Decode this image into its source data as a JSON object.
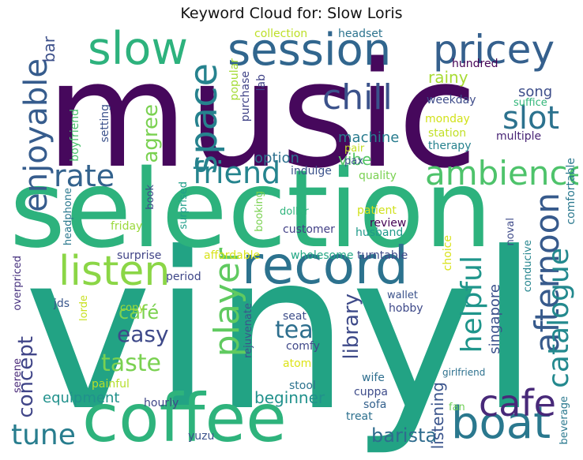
{
  "title": "Keyword Cloud for: Slow Loris",
  "palette": "viridis",
  "words": [
    {
      "text": "music",
      "color": "#46085c"
    },
    {
      "text": "vinyl",
      "color": "#22a384"
    },
    {
      "text": "selection",
      "color": "#2db27d"
    },
    {
      "text": "coffee",
      "color": "#2eb37c"
    },
    {
      "text": "record",
      "color": "#2c728e"
    },
    {
      "text": "session",
      "color": "#31668e"
    },
    {
      "text": "slow",
      "color": "#2db27d"
    },
    {
      "text": "pricey",
      "color": "#35608d"
    },
    {
      "text": "boat",
      "color": "#2a788e"
    },
    {
      "text": "listen",
      "color": "#8bd646"
    },
    {
      "text": "ambience",
      "color": "#4ec36b"
    },
    {
      "text": "space",
      "color": "#26828e"
    },
    {
      "text": "chill",
      "color": "#3b528b"
    },
    {
      "text": "slot",
      "color": "#2c728e"
    },
    {
      "text": "friend",
      "color": "#25848e"
    },
    {
      "text": "rate",
      "color": "#33628d"
    },
    {
      "text": "cafe",
      "color": "#482979"
    },
    {
      "text": "player",
      "color": "#60ca60"
    },
    {
      "text": "enjoyable",
      "color": "#365c8d"
    },
    {
      "text": "afternoon",
      "color": "#375a8c"
    },
    {
      "text": "catalogue",
      "color": "#23898e"
    },
    {
      "text": "helpful",
      "color": "#1f958b"
    },
    {
      "text": "tune",
      "color": "#287d8e"
    },
    {
      "text": "taste",
      "color": "#7ad151"
    },
    {
      "text": "tea",
      "color": "#2e6f8e"
    },
    {
      "text": "easy",
      "color": "#3e4989"
    },
    {
      "text": "café",
      "color": "#7cd250"
    },
    {
      "text": "concept",
      "color": "#404588"
    },
    {
      "text": "library",
      "color": "#3e4a89"
    },
    {
      "text": "agree",
      "color": "#7ad151"
    },
    {
      "text": "equipment",
      "color": "#21918c"
    },
    {
      "text": "barista",
      "color": "#2f6c8e"
    },
    {
      "text": "singapore",
      "color": "#3b518b"
    },
    {
      "text": "vibe",
      "color": "#56c667"
    },
    {
      "text": "option",
      "color": "#2d708e"
    },
    {
      "text": "machine",
      "color": "#287c8e"
    },
    {
      "text": "song",
      "color": "#3d4e8a"
    },
    {
      "text": "rainy",
      "color": "#a8db34"
    },
    {
      "text": "bar",
      "color": "#3c4f8a"
    },
    {
      "text": "beginner",
      "color": "#21918c"
    },
    {
      "text": "listening",
      "color": "#3a548c"
    },
    {
      "text": "collection",
      "color": "#bddf26"
    },
    {
      "text": "headset",
      "color": "#2c738e"
    },
    {
      "text": "popular",
      "color": "#a5db36"
    },
    {
      "text": "purchase",
      "color": "#404387"
    },
    {
      "text": "lab",
      "color": "#404387"
    },
    {
      "text": "hundred",
      "color": "#440154"
    },
    {
      "text": "weekday",
      "color": "#3e4c8a"
    },
    {
      "text": "suffice",
      "color": "#32b67a"
    },
    {
      "text": "monday",
      "color": "#d2e21b"
    },
    {
      "text": "station",
      "color": "#c0df25"
    },
    {
      "text": "therapy",
      "color": "#26828e"
    },
    {
      "text": "multiple",
      "color": "#482475"
    },
    {
      "text": "pair",
      "color": "#c2df23"
    },
    {
      "text": "pax",
      "color": "#3a538b"
    },
    {
      "text": "indulge",
      "color": "#3b528b"
    },
    {
      "text": "quality",
      "color": "#7ad151"
    },
    {
      "text": "boyfriend",
      "color": "#4ac16d"
    },
    {
      "text": "setting",
      "color": "#3b528b"
    },
    {
      "text": "comfortable",
      "color": "#2a788e"
    },
    {
      "text": "noval",
      "color": "#3e4a89"
    },
    {
      "text": "choice",
      "color": "#d8e219"
    },
    {
      "text": "patient",
      "color": "#d0e11c"
    },
    {
      "text": "review",
      "color": "#440154"
    },
    {
      "text": "husband",
      "color": "#1f9a8a"
    },
    {
      "text": "customer",
      "color": "#424086"
    },
    {
      "text": "dollar",
      "color": "#2fb47c"
    },
    {
      "text": "booking",
      "color": "#7ad151"
    },
    {
      "text": "book",
      "color": "#3e4989"
    },
    {
      "text": "surprised",
      "color": "#1f9e89"
    },
    {
      "text": "headphone",
      "color": "#2a788e"
    },
    {
      "text": "friday",
      "color": "#9bd93c"
    },
    {
      "text": "surprise",
      "color": "#414487"
    },
    {
      "text": "affordable",
      "color": "#d8e219"
    },
    {
      "text": "wholesome",
      "color": "#22a785"
    },
    {
      "text": "turntable",
      "color": "#3e4a89"
    },
    {
      "text": "period",
      "color": "#3f4788"
    },
    {
      "text": "conducive",
      "color": "#25858e"
    },
    {
      "text": "overpriced",
      "color": "#46307e"
    },
    {
      "text": "jds",
      "color": "#39568c"
    },
    {
      "text": "wallet",
      "color": "#3b528b"
    },
    {
      "text": "hobby",
      "color": "#3e4989"
    },
    {
      "text": "lorde",
      "color": "#c8e020"
    },
    {
      "text": "copy",
      "color": "#a2da37"
    },
    {
      "text": "rejuvenate",
      "color": "#3b528b"
    },
    {
      "text": "seat",
      "color": "#3d4d8a"
    },
    {
      "text": "comfy",
      "color": "#3f4889"
    },
    {
      "text": "atom",
      "color": "#dde318"
    },
    {
      "text": "serene",
      "color": "#482878"
    },
    {
      "text": "painful",
      "color": "#b5de2b"
    },
    {
      "text": "hourly",
      "color": "#3f4788"
    },
    {
      "text": "stool",
      "color": "#2c738e"
    },
    {
      "text": "wife",
      "color": "#2e6e8e"
    },
    {
      "text": "cuppa",
      "color": "#3e4c8a"
    },
    {
      "text": "sofa",
      "color": "#34618d"
    },
    {
      "text": "treat",
      "color": "#2d708e"
    },
    {
      "text": "fan",
      "color": "#70cf57"
    },
    {
      "text": "girlfriend",
      "color": "#2d718e"
    },
    {
      "text": "beverage",
      "color": "#2a788e"
    },
    {
      "text": "yuzu",
      "color": "#3b528b"
    }
  ]
}
